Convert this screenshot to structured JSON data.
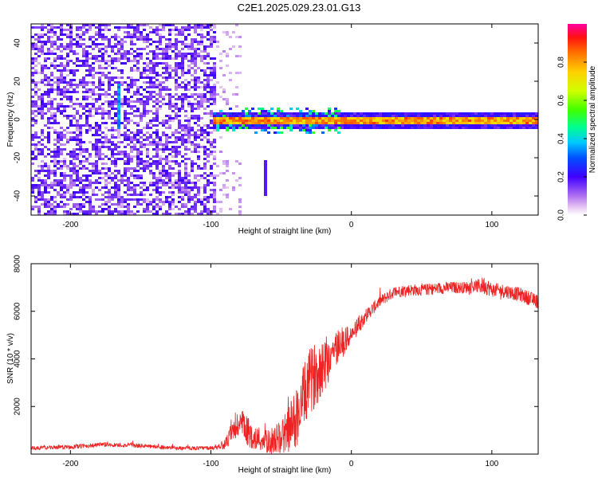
{
  "title": "C2E1.2025.029.23.01.G13",
  "chart_data": [
    {
      "type": "heatmap",
      "xlabel": "Height of straight line (km)",
      "ylabel": "Frequency (Hz)",
      "xlim": [
        -228,
        133
      ],
      "ylim": [
        -50,
        50
      ],
      "xticks": [
        -200,
        -100,
        0,
        100
      ],
      "xtick_labels": [
        "-200",
        "-100",
        "0",
        "100"
      ],
      "yticks": [
        -40,
        -20,
        0,
        20,
        40
      ],
      "ytick_labels": [
        "-40",
        "-20",
        "0",
        "20",
        "40"
      ],
      "colorbar": {
        "label": "Normalized spectral amplitude",
        "range": [
          0,
          1
        ],
        "ticks": [
          0.0,
          0.2,
          0.4,
          0.6,
          0.8
        ],
        "tick_labels": [
          "0.0",
          "0.2",
          "0.4",
          "0.6",
          "0.8"
        ]
      },
      "features": {
        "noise_region_x": [
          -228,
          -97
        ],
        "noise_amplitude": 0.05,
        "signal_band_x": [
          -100,
          133
        ],
        "signal_band_freq": 0,
        "signal_band_amplitude": 0.85,
        "scattered_blobs_x": [
          -100,
          -10
        ],
        "vertical_streak": {
          "x": -167,
          "freq_range": [
            -5,
            20
          ]
        },
        "secondary_streak": {
          "x": -63,
          "freq_range": [
            -40,
            -20
          ]
        }
      }
    },
    {
      "type": "line",
      "xlabel": "Height of straight line (km)",
      "ylabel": "SNR (10 * v/v)",
      "xlim": [
        -228,
        133
      ],
      "ylim": [
        0,
        8000
      ],
      "xticks": [
        -200,
        -100,
        0,
        100
      ],
      "xtick_labels": [
        "-200",
        "-100",
        "0",
        "100"
      ],
      "yticks": [
        2000,
        4000,
        6000,
        8000
      ],
      "ytick_labels": [
        "2000",
        "4000",
        "6000",
        "8000"
      ],
      "line_color": "#ee2222",
      "series": [
        {
          "x": [
            -228,
            -200,
            -175,
            -150,
            -125,
            -100,
            -90,
            -80,
            -75,
            -70,
            -60,
            -50,
            -40,
            -30,
            -20,
            -10,
            0,
            10,
            20,
            30,
            40,
            50,
            60,
            70,
            80,
            90,
            95,
            100,
            110,
            120,
            133
          ],
          "y": [
            250,
            300,
            400,
            350,
            250,
            250,
            400,
            1300,
            1000,
            700,
            500,
            700,
            1400,
            3000,
            3800,
            4500,
            5000,
            5800,
            6400,
            6800,
            6900,
            6900,
            6950,
            7000,
            7000,
            7050,
            7100,
            6900,
            6850,
            6700,
            6400
          ],
          "noise": [
            80,
            90,
            100,
            90,
            80,
            80,
            200,
            700,
            700,
            500,
            500,
            700,
            1300,
            1400,
            1300,
            800,
            400,
            300,
            250,
            250,
            250,
            250,
            250,
            250,
            250,
            300,
            400,
            300,
            300,
            300,
            300
          ]
        }
      ]
    }
  ]
}
